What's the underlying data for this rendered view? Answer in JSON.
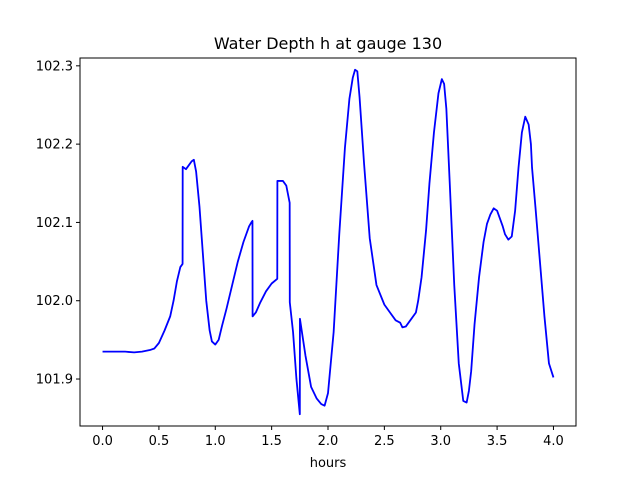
{
  "chart_data": {
    "type": "line",
    "title": "Water Depth h at gauge 130",
    "xlabel": "hours",
    "ylabel": "",
    "xlim": [
      -0.2,
      4.2
    ],
    "ylim": [
      101.84,
      102.31
    ],
    "x_ticks": [
      0.0,
      0.5,
      1.0,
      1.5,
      2.0,
      2.5,
      3.0,
      3.5,
      4.0
    ],
    "x_tick_labels": [
      "0.0",
      "0.5",
      "1.0",
      "1.5",
      "2.0",
      "2.5",
      "3.0",
      "3.5",
      "4.0"
    ],
    "y_ticks": [
      101.9,
      102.0,
      102.1,
      102.2,
      102.3
    ],
    "y_tick_labels": [
      "101.9",
      "102.0",
      "102.1",
      "102.2",
      "102.3"
    ],
    "grid": false,
    "series": [
      {
        "color": "#0000ff",
        "x": [
          0.0,
          0.1,
          0.2,
          0.28,
          0.35,
          0.42,
          0.46,
          0.5,
          0.55,
          0.6,
          0.63,
          0.66,
          0.69,
          0.71,
          0.711,
          0.74,
          0.76,
          0.79,
          0.81,
          0.83,
          0.86,
          0.89,
          0.92,
          0.95,
          0.97,
          1.0,
          1.03,
          1.06,
          1.1,
          1.15,
          1.2,
          1.25,
          1.3,
          1.32,
          1.33,
          1.331,
          1.36,
          1.4,
          1.45,
          1.5,
          1.55,
          1.551,
          1.6,
          1.63,
          1.66,
          1.661,
          1.69,
          1.72,
          1.75,
          1.751,
          1.8,
          1.85,
          1.9,
          1.94,
          1.97,
          2.0,
          2.05,
          2.1,
          2.15,
          2.19,
          2.22,
          2.24,
          2.26,
          2.28,
          2.32,
          2.37,
          2.43,
          2.5,
          2.55,
          2.6,
          2.64,
          2.66,
          2.69,
          2.73,
          2.78,
          2.8,
          2.83,
          2.87,
          2.9,
          2.94,
          2.98,
          3.01,
          3.03,
          3.05,
          3.08,
          3.12,
          3.16,
          3.2,
          3.23,
          3.25,
          3.27,
          3.3,
          3.34,
          3.38,
          3.41,
          3.44,
          3.47,
          3.5,
          3.52,
          3.55,
          3.57,
          3.6,
          3.63,
          3.66,
          3.69,
          3.72,
          3.75,
          3.78,
          3.8,
          3.81,
          3.84,
          3.88,
          3.92,
          3.96,
          4.0
        ],
        "y": [
          101.935,
          101.935,
          101.935,
          101.934,
          101.935,
          101.937,
          101.939,
          101.946,
          101.962,
          101.98,
          102.0,
          102.025,
          102.043,
          102.047,
          102.171,
          102.168,
          102.172,
          102.178,
          102.18,
          102.165,
          102.12,
          102.06,
          102.0,
          101.962,
          101.948,
          101.944,
          101.95,
          101.968,
          101.99,
          102.02,
          102.05,
          102.075,
          102.095,
          102.1,
          102.102,
          101.98,
          101.985,
          101.998,
          102.012,
          102.022,
          102.028,
          102.153,
          102.153,
          102.147,
          102.125,
          101.998,
          101.96,
          101.9,
          101.855,
          101.977,
          101.93,
          101.89,
          101.875,
          101.868,
          101.866,
          101.882,
          101.96,
          102.085,
          102.195,
          102.258,
          102.285,
          102.295,
          102.293,
          102.26,
          102.175,
          102.08,
          102.02,
          101.995,
          101.985,
          101.975,
          101.972,
          101.966,
          101.967,
          101.975,
          101.985,
          102.0,
          102.03,
          102.09,
          102.15,
          102.215,
          102.265,
          102.283,
          102.277,
          102.245,
          102.15,
          102.02,
          101.92,
          101.872,
          101.87,
          101.885,
          101.91,
          101.97,
          102.03,
          102.075,
          102.098,
          102.11,
          102.118,
          102.115,
          102.107,
          102.095,
          102.085,
          102.078,
          102.082,
          102.115,
          102.17,
          102.215,
          102.235,
          102.225,
          102.2,
          102.17,
          102.12,
          102.05,
          101.98,
          101.92,
          101.902
        ]
      }
    ]
  }
}
